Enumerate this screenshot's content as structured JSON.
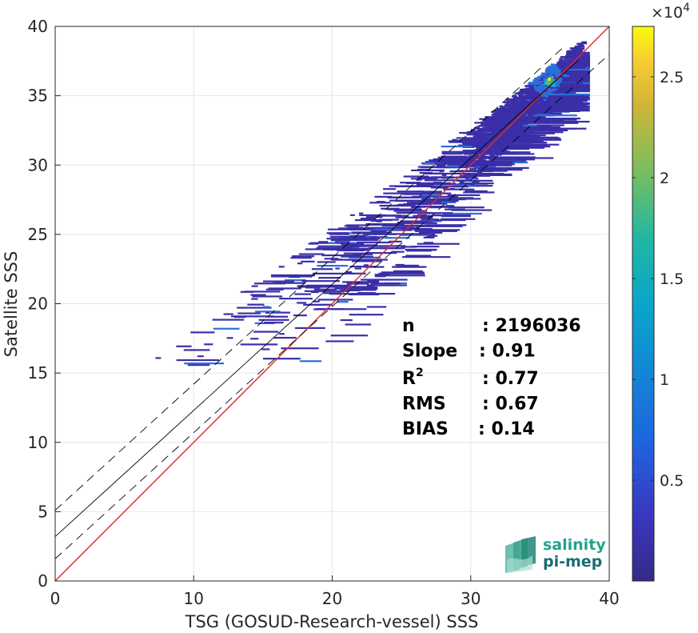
{
  "chart_data": {
    "type": "heatmap",
    "title": "",
    "xlabel": "TSG (GOSUD-Research-vessel) SSS",
    "ylabel": "Satellite SSS",
    "xlim": [
      0,
      40
    ],
    "ylim": [
      0,
      40
    ],
    "xticks": [
      "0",
      "10",
      "20",
      "30",
      "40"
    ],
    "yticks": [
      "0",
      "5",
      "10",
      "15",
      "20",
      "25",
      "30",
      "35",
      "40"
    ],
    "grid": true,
    "colorbar": {
      "exponent_label": "×10",
      "exponent_power": "4",
      "ticks": [
        "0.5",
        "1",
        "1.5",
        "2",
        "2.5"
      ],
      "tick_values": [
        5000,
        10000,
        15000,
        20000,
        25000
      ],
      "range": [
        0,
        27500
      ],
      "colormap": "parula"
    },
    "lines": [
      {
        "name": "identity",
        "color": "#e8261f",
        "style": "solid",
        "x": [
          0,
          40
        ],
        "y": [
          0,
          40
        ]
      },
      {
        "name": "fit",
        "color": "#000000",
        "style": "solid",
        "x": [
          0,
          37.8
        ],
        "y": [
          3.2,
          37.6
        ]
      },
      {
        "name": "fit-upper",
        "color": "#000000",
        "style": "dashed",
        "x": [
          0,
          36.7
        ],
        "y": [
          5.1,
          38.5
        ]
      },
      {
        "name": "fit-lower",
        "color": "#000000",
        "style": "dashed",
        "x": [
          0,
          40
        ],
        "y": [
          1.6,
          38.0
        ]
      }
    ],
    "stats": [
      {
        "label": "n",
        "value": ": 2196036"
      },
      {
        "label": "Slope",
        "value": ": 0.91"
      },
      {
        "label": "R",
        "sup": "2",
        "value": ": 0.77"
      },
      {
        "label": "RMS",
        "value": ": 0.67"
      },
      {
        "label": "BIAS",
        "value": ": 0.14"
      }
    ]
  },
  "logo": {
    "line1": "salinity",
    "line2": "pi-mep",
    "color1": "#22a38e",
    "color2": "#1b6b73"
  },
  "colors": {
    "low": "#3a2fa8",
    "mid": "#2c6fd8",
    "high": "#12b6c6",
    "peak": "#f5e40f",
    "identity": "#e8261f"
  }
}
